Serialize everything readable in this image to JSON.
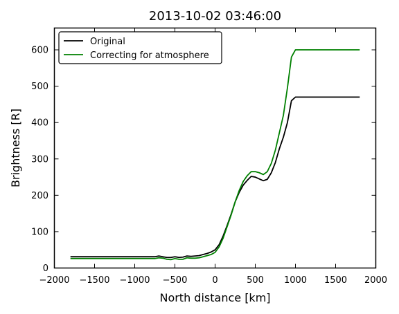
{
  "chart_data": {
    "type": "line",
    "title": "2013-10-02 03:46:00",
    "xlabel": "North distance [km]",
    "ylabel": "Brightness [R]",
    "xlim": [
      -2000,
      2000
    ],
    "ylim": [
      0,
      660
    ],
    "xticks": [
      -2000,
      -1500,
      -1000,
      -500,
      0,
      500,
      1000,
      1500,
      2000
    ],
    "xtick_labels": [
      "−2000",
      "−1500",
      "−1000",
      "−500",
      "0",
      "500",
      "1000",
      "1500",
      "2000"
    ],
    "yticks": [
      0,
      100,
      200,
      300,
      400,
      500,
      600
    ],
    "ytick_labels": [
      "0",
      "100",
      "200",
      "300",
      "400",
      "500",
      "600"
    ],
    "legend": "top-left",
    "grid": false,
    "series": [
      {
        "name": "Original",
        "color": "#000000",
        "points": [
          [
            -1800,
            31
          ],
          [
            -1500,
            31
          ],
          [
            -1200,
            31
          ],
          [
            -900,
            31
          ],
          [
            -750,
            31
          ],
          [
            -700,
            33
          ],
          [
            -650,
            31
          ],
          [
            -600,
            29
          ],
          [
            -550,
            29
          ],
          [
            -500,
            31
          ],
          [
            -450,
            29
          ],
          [
            -400,
            30
          ],
          [
            -350,
            33
          ],
          [
            -300,
            32
          ],
          [
            -250,
            33
          ],
          [
            -200,
            34
          ],
          [
            -150,
            37
          ],
          [
            -100,
            40
          ],
          [
            -50,
            44
          ],
          [
            0,
            50
          ],
          [
            50,
            64
          ],
          [
            100,
            88
          ],
          [
            150,
            117
          ],
          [
            200,
            148
          ],
          [
            250,
            182
          ],
          [
            300,
            208
          ],
          [
            350,
            228
          ],
          [
            400,
            241
          ],
          [
            450,
            252
          ],
          [
            500,
            250
          ],
          [
            550,
            245
          ],
          [
            600,
            240
          ],
          [
            650,
            244
          ],
          [
            700,
            262
          ],
          [
            750,
            290
          ],
          [
            800,
            328
          ],
          [
            850,
            360
          ],
          [
            900,
            400
          ],
          [
            950,
            460
          ],
          [
            1000,
            470
          ],
          [
            1200,
            470
          ],
          [
            1500,
            470
          ],
          [
            1800,
            470
          ]
        ]
      },
      {
        "name": "Correcting for atmosphere",
        "color": "#008000",
        "points": [
          [
            -1800,
            26
          ],
          [
            -1500,
            26
          ],
          [
            -1200,
            26
          ],
          [
            -900,
            26
          ],
          [
            -750,
            26
          ],
          [
            -700,
            28
          ],
          [
            -650,
            27
          ],
          [
            -600,
            24
          ],
          [
            -550,
            23
          ],
          [
            -500,
            26
          ],
          [
            -450,
            24
          ],
          [
            -400,
            24
          ],
          [
            -350,
            28
          ],
          [
            -300,
            27
          ],
          [
            -250,
            27
          ],
          [
            -200,
            28
          ],
          [
            -150,
            31
          ],
          [
            -100,
            34
          ],
          [
            -50,
            37
          ],
          [
            0,
            43
          ],
          [
            50,
            58
          ],
          [
            100,
            82
          ],
          [
            150,
            114
          ],
          [
            200,
            146
          ],
          [
            250,
            182
          ],
          [
            300,
            213
          ],
          [
            350,
            238
          ],
          [
            400,
            254
          ],
          [
            450,
            265
          ],
          [
            500,
            265
          ],
          [
            550,
            262
          ],
          [
            600,
            257
          ],
          [
            650,
            265
          ],
          [
            700,
            288
          ],
          [
            750,
            324
          ],
          [
            800,
            372
          ],
          [
            850,
            420
          ],
          [
            900,
            495
          ],
          [
            950,
            580
          ],
          [
            1000,
            600
          ],
          [
            1200,
            600
          ],
          [
            1500,
            600
          ],
          [
            1800,
            600
          ]
        ]
      }
    ]
  }
}
